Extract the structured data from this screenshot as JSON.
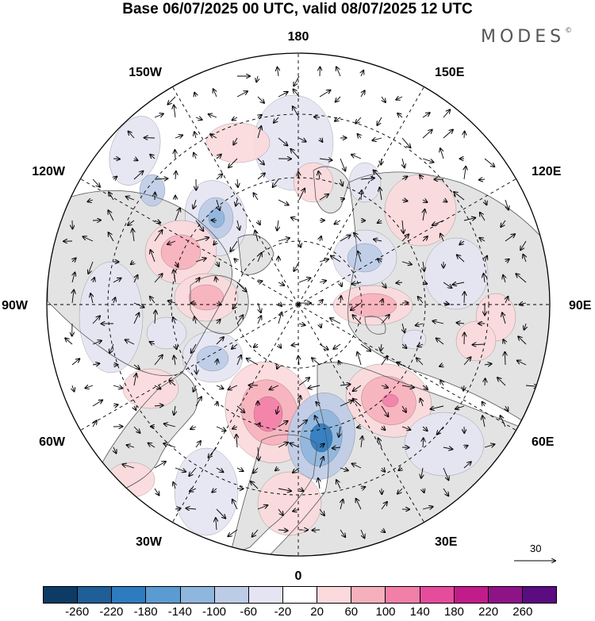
{
  "title": "Base 06/07/2025 00 UTC, valid 08/07/2025 12 UTC",
  "brand": {
    "name": "MODES",
    "mark": "©"
  },
  "longitude_labels": [
    "180",
    "150E",
    "120E",
    "90E",
    "60E",
    "30E",
    "0",
    "30W",
    "60W",
    "90W",
    "120W",
    "150W"
  ],
  "projection": "north-polar-stereographic",
  "reference_vector": {
    "value": "30"
  },
  "colorbar": {
    "colors": [
      "#0d3b66",
      "#1f5e96",
      "#2e7bbf",
      "#5a9bd1",
      "#8fb6dc",
      "#bccbe6",
      "#e4e4f3",
      "#ffffff",
      "#fbd9dc",
      "#f6b0bd",
      "#f27fa8",
      "#e54c9c",
      "#c21c8b",
      "#8e1387",
      "#5a0c80"
    ],
    "ticks": [
      "-260",
      "-220",
      "-180",
      "-140",
      "-100",
      "-60",
      "-20",
      "20",
      "60",
      "100",
      "140",
      "180",
      "220",
      "260"
    ]
  },
  "colors": {
    "land": "#e3e3e3",
    "ocean": "#ffffff",
    "coast": "#555555",
    "grid": "#000000"
  }
}
